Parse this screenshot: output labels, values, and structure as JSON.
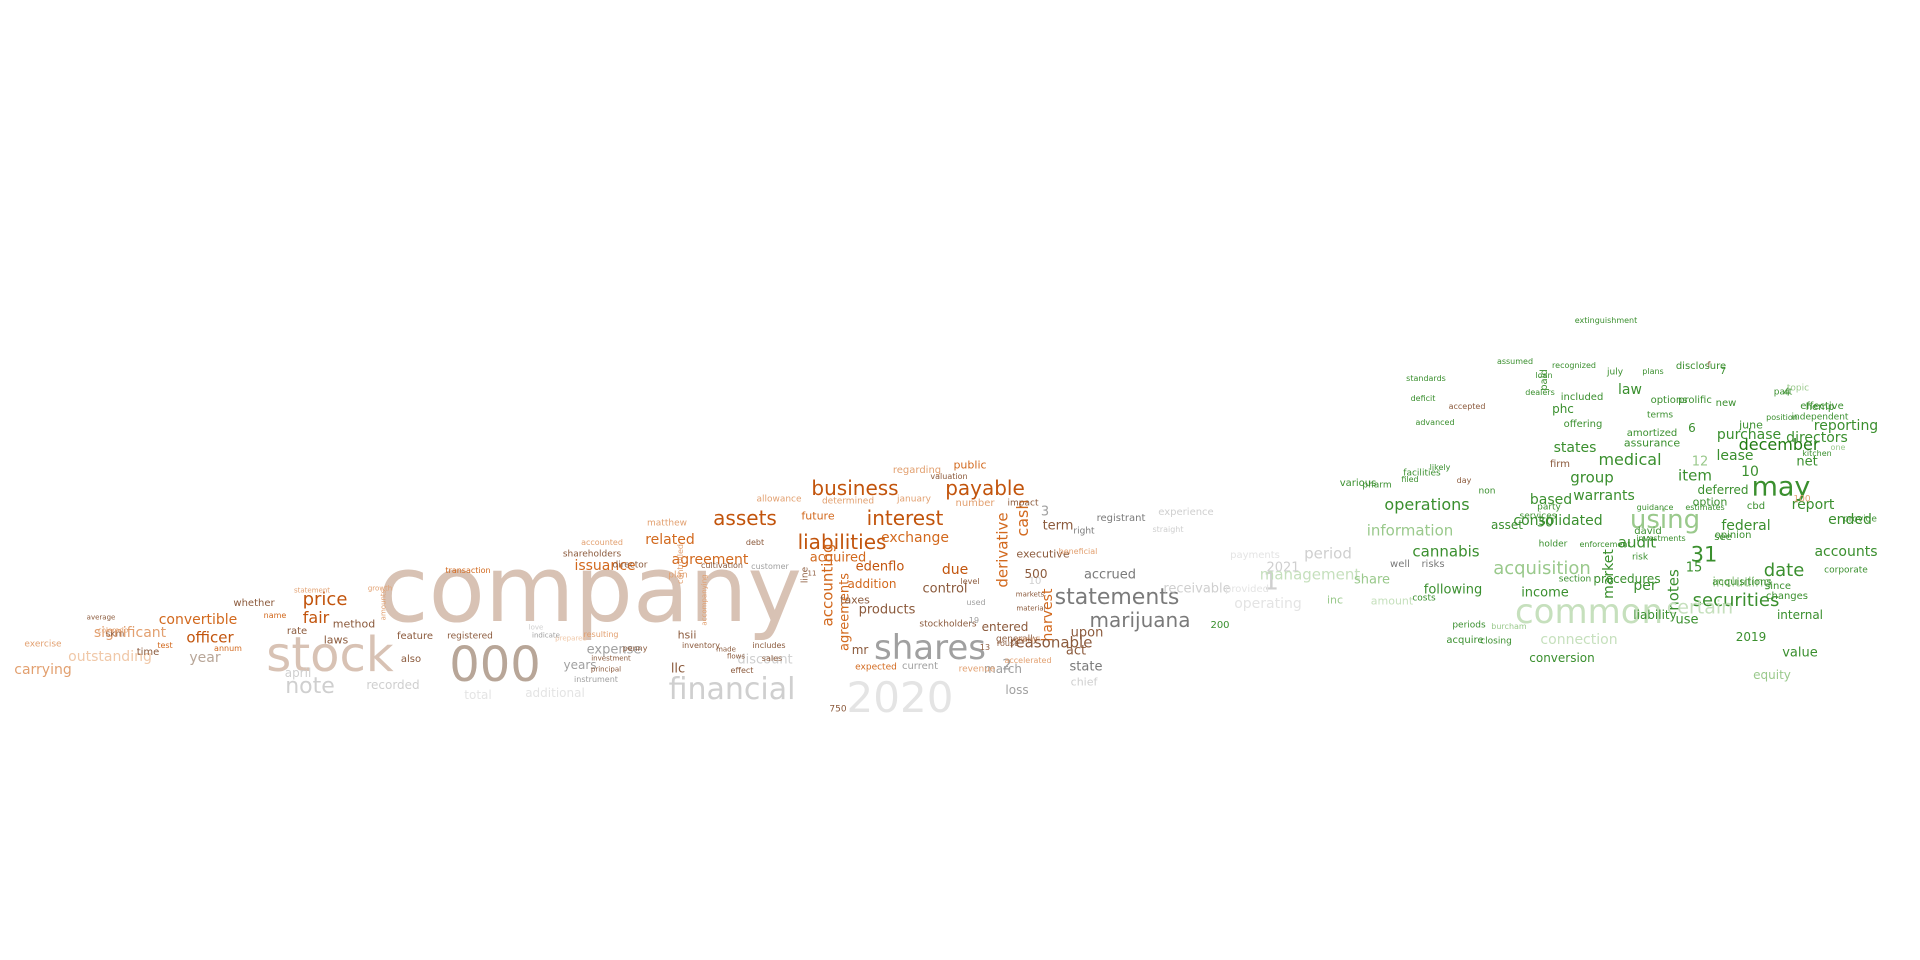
{
  "colors": {
    "dark_orange": "#c2540c",
    "orange": "#d2691e",
    "light_orange": "#e2a070",
    "pale_orange": "#f0c8a8",
    "taupe_light": "#d8c2b4",
    "taupe": "#b8a698",
    "gray": "#a0a0a0",
    "light_gray": "#cfcfcf",
    "pale_gray": "#e4e4e4",
    "dark_green": "#1f7a10",
    "green": "#3a8f2e",
    "light_green": "#9ac98c",
    "pale_green": "#c6e0bd",
    "brown": "#8b5a3c",
    "dark_gray": "#7a7a7a"
  },
  "words": [
    {
      "t": "company",
      "c": "taupe_light"
    },
    {
      "t": "stock",
      "c": "taupe_light"
    },
    {
      "t": "000",
      "c": "taupe"
    },
    {
      "t": "shares",
      "c": "gray"
    },
    {
      "t": "financial",
      "c": "light_gray"
    },
    {
      "t": "2020",
      "c": "pale_gray"
    },
    {
      "t": "note",
      "c": "light_gray"
    },
    {
      "t": "statements",
      "c": "dark_gray"
    },
    {
      "t": "marijuana",
      "c": "dark_gray"
    },
    {
      "t": "liabilities",
      "c": "dark_orange"
    },
    {
      "t": "business",
      "c": "dark_orange"
    },
    {
      "t": "interest",
      "c": "dark_orange"
    },
    {
      "t": "payable",
      "c": "dark_orange"
    },
    {
      "t": "assets",
      "c": "dark_orange"
    },
    {
      "t": "price",
      "c": "dark_orange"
    },
    {
      "t": "fair",
      "c": "dark_orange"
    },
    {
      "t": "officer",
      "c": "dark_orange"
    },
    {
      "t": "convertible",
      "c": "orange"
    },
    {
      "t": "significant",
      "c": "light_orange"
    },
    {
      "t": "outstanding",
      "c": "pale_orange"
    },
    {
      "t": "year",
      "c": "taupe"
    },
    {
      "t": "exchange",
      "c": "orange"
    },
    {
      "t": "related",
      "c": "orange"
    },
    {
      "t": "issuance",
      "c": "orange"
    },
    {
      "t": "agreement",
      "c": "orange"
    },
    {
      "t": "acquired",
      "c": "orange"
    },
    {
      "t": "edenflo",
      "c": "dark_orange"
    },
    {
      "t": "due",
      "c": "dark_orange"
    },
    {
      "t": "control",
      "c": "brown"
    },
    {
      "t": "products",
      "c": "brown"
    },
    {
      "t": "addition",
      "c": "orange"
    },
    {
      "t": "cash",
      "c": "orange"
    },
    {
      "t": "derivative",
      "c": "orange"
    },
    {
      "t": "harvest",
      "c": "orange"
    },
    {
      "t": "accounting",
      "c": "orange"
    },
    {
      "t": "agreements",
      "c": "orange"
    },
    {
      "t": "term",
      "c": "brown"
    },
    {
      "t": "500",
      "c": "brown"
    },
    {
      "t": "executive",
      "c": "brown"
    },
    {
      "t": "act",
      "c": "brown"
    },
    {
      "t": "upon",
      "c": "brown"
    },
    {
      "t": "state",
      "c": "dark_gray"
    },
    {
      "t": "chief",
      "c": "light_gray"
    },
    {
      "t": "march",
      "c": "gray"
    },
    {
      "t": "loss",
      "c": "gray"
    },
    {
      "t": "entered",
      "c": "brown"
    },
    {
      "t": "expense",
      "c": "gray"
    },
    {
      "t": "years",
      "c": "gray"
    },
    {
      "t": "llc",
      "c": "brown"
    },
    {
      "t": "hsii",
      "c": "brown"
    },
    {
      "t": "discount",
      "c": "light_gray"
    },
    {
      "t": "mr",
      "c": "brown"
    },
    {
      "t": "2",
      "c": "gray"
    },
    {
      "t": "3",
      "c": "gray"
    },
    {
      "t": "future",
      "c": "orange"
    },
    {
      "t": "taxes",
      "c": "brown"
    },
    {
      "t": "method",
      "c": "brown"
    },
    {
      "t": "laws",
      "c": "brown"
    },
    {
      "t": "rate",
      "c": "brown"
    },
    {
      "t": "whether",
      "c": "brown"
    },
    {
      "t": "also",
      "c": "brown"
    },
    {
      "t": "april",
      "c": "light_gray"
    },
    {
      "t": "recorded",
      "c": "light_gray"
    },
    {
      "t": "total",
      "c": "pale_gray"
    },
    {
      "t": "additional",
      "c": "pale_gray"
    },
    {
      "t": "feature",
      "c": "brown"
    },
    {
      "t": "registered",
      "c": "brown"
    },
    {
      "t": "public",
      "c": "orange"
    },
    {
      "t": "regarding",
      "c": "light_orange"
    },
    {
      "t": "number",
      "c": "light_orange"
    },
    {
      "t": "january",
      "c": "light_orange"
    },
    {
      "t": "determined",
      "c": "light_orange"
    },
    {
      "t": "allowance",
      "c": "light_orange"
    },
    {
      "t": "impact",
      "c": "brown"
    },
    {
      "t": "matthew",
      "c": "light_orange"
    },
    {
      "t": "shareholders",
      "c": "brown"
    },
    {
      "t": "director",
      "c": "brown"
    },
    {
      "t": "transaction",
      "c": "orange"
    },
    {
      "t": "stockholders",
      "c": "brown"
    },
    {
      "t": "current",
      "c": "gray"
    },
    {
      "t": "generally",
      "c": "brown"
    },
    {
      "t": "accrued",
      "c": "dark_gray"
    },
    {
      "t": "receivable",
      "c": "light_gray"
    },
    {
      "t": "registrant",
      "c": "dark_gray"
    },
    {
      "t": "period",
      "c": "light_gray"
    },
    {
      "t": "1",
      "c": "light_gray"
    },
    {
      "t": "2021",
      "c": "light_gray"
    },
    {
      "t": "operating",
      "c": "pale_gray"
    },
    {
      "t": "payments",
      "c": "pale_gray"
    },
    {
      "t": "provided",
      "c": "pale_gray"
    },
    {
      "t": "management",
      "c": "pale_green"
    },
    {
      "t": "inc",
      "c": "light_green"
    },
    {
      "t": "share",
      "c": "light_green"
    },
    {
      "t": "well",
      "c": "dark_gray"
    },
    {
      "t": "risks",
      "c": "dark_gray"
    },
    {
      "t": "amount",
      "c": "pale_green"
    },
    {
      "t": "information",
      "c": "light_green"
    },
    {
      "t": "operations",
      "c": "green"
    },
    {
      "t": "cannabis",
      "c": "green"
    },
    {
      "t": "acquisition",
      "c": "light_green"
    },
    {
      "t": "common",
      "c": "pale_green"
    },
    {
      "t": "connection",
      "c": "pale_green"
    },
    {
      "t": "following",
      "c": "green"
    },
    {
      "t": "income",
      "c": "green"
    },
    {
      "t": "consolidated",
      "c": "green"
    },
    {
      "t": "asset",
      "c": "green"
    },
    {
      "t": "based",
      "c": "green"
    },
    {
      "t": "states",
      "c": "green"
    },
    {
      "t": "group",
      "c": "green"
    },
    {
      "t": "warrants",
      "c": "green"
    },
    {
      "t": "audit",
      "c": "green"
    },
    {
      "t": "per",
      "c": "green"
    },
    {
      "t": "market",
      "c": "green"
    },
    {
      "t": "notes",
      "c": "green"
    },
    {
      "t": "conversion",
      "c": "green"
    },
    {
      "t": "using",
      "c": "light_green"
    },
    {
      "t": "31",
      "c": "green"
    },
    {
      "t": "may",
      "c": "green"
    },
    {
      "t": "december",
      "c": "dark_green"
    },
    {
      "t": "lease",
      "c": "green"
    },
    {
      "t": "purchase",
      "c": "green"
    },
    {
      "t": "directors",
      "c": "green"
    },
    {
      "t": "reporting",
      "c": "green"
    },
    {
      "t": "net",
      "c": "green"
    },
    {
      "t": "report",
      "c": "green"
    },
    {
      "t": "federal",
      "c": "green"
    },
    {
      "t": "ended",
      "c": "green"
    },
    {
      "t": "accounts",
      "c": "green"
    },
    {
      "t": "date",
      "c": "green"
    },
    {
      "t": "securities",
      "c": "green"
    },
    {
      "t": "value",
      "c": "green"
    },
    {
      "t": "2019",
      "c": "green"
    },
    {
      "t": "equity",
      "c": "light_green"
    },
    {
      "t": "including",
      "c": "light_green"
    },
    {
      "t": "certain",
      "c": "pale_green"
    },
    {
      "t": "internal",
      "c": "green"
    },
    {
      "t": "10",
      "c": "green"
    },
    {
      "t": "12",
      "c": "light_green"
    },
    {
      "t": "medical",
      "c": "green"
    },
    {
      "t": "item",
      "c": "green"
    },
    {
      "t": "15",
      "c": "green"
    },
    {
      "t": "use",
      "c": "green"
    },
    {
      "t": "liability",
      "c": "green"
    },
    {
      "t": "law",
      "c": "green"
    },
    {
      "t": "phc",
      "c": "green"
    },
    {
      "t": "deferred",
      "c": "green"
    },
    {
      "t": "6",
      "c": "green"
    },
    {
      "t": "7",
      "c": "green"
    },
    {
      "t": "4",
      "c": "green"
    },
    {
      "t": "30",
      "c": "green"
    },
    {
      "t": "option",
      "c": "green"
    },
    {
      "t": "acquisitions",
      "c": "green"
    },
    {
      "t": "options",
      "c": "green"
    },
    {
      "t": "prolific",
      "c": "green"
    },
    {
      "t": "paid",
      "c": "green"
    },
    {
      "t": "since",
      "c": "green"
    },
    {
      "t": "cbd",
      "c": "green"
    },
    {
      "t": "june",
      "c": "green"
    },
    {
      "t": "procedures",
      "c": "green"
    },
    {
      "t": "amortized",
      "c": "green"
    },
    {
      "t": "offering",
      "c": "green"
    },
    {
      "t": "included",
      "c": "green"
    },
    {
      "t": "part",
      "c": "green"
    },
    {
      "t": "changes",
      "c": "green"
    },
    {
      "t": "hemp",
      "c": "green"
    },
    {
      "t": "provide",
      "c": "green"
    },
    {
      "t": "new",
      "c": "green"
    },
    {
      "t": "july",
      "c": "green"
    },
    {
      "t": "extinguishment",
      "c": "green"
    },
    {
      "t": "disclosure",
      "c": "green"
    },
    {
      "t": "david",
      "c": "green"
    },
    {
      "t": "see",
      "c": "green"
    },
    {
      "t": "opinion",
      "c": "green"
    },
    {
      "t": "assurance",
      "c": "green"
    },
    {
      "t": "corporate",
      "c": "green"
    },
    {
      "t": "one",
      "c": "light_green"
    },
    {
      "t": "effective",
      "c": "green"
    },
    {
      "t": "section",
      "c": "green"
    },
    {
      "t": "holder",
      "c": "green"
    },
    {
      "t": "services",
      "c": "green"
    },
    {
      "t": "party",
      "c": "green"
    },
    {
      "t": "terms",
      "c": "green"
    },
    {
      "t": "various",
      "c": "green"
    },
    {
      "t": "pharm",
      "c": "green"
    },
    {
      "t": "facilities",
      "c": "green"
    },
    {
      "t": "non",
      "c": "green"
    },
    {
      "t": "filed",
      "c": "green"
    },
    {
      "t": "likely",
      "c": "green"
    },
    {
      "t": "advanced",
      "c": "green"
    },
    {
      "t": "deficit",
      "c": "green"
    },
    {
      "t": "standards",
      "c": "green"
    },
    {
      "t": "costs",
      "c": "green"
    },
    {
      "t": "acquire",
      "c": "green"
    },
    {
      "t": "periods",
      "c": "green"
    },
    {
      "t": "burcham",
      "c": "light_green"
    },
    {
      "t": "closing",
      "c": "green"
    },
    {
      "t": "risk",
      "c": "green"
    },
    {
      "t": "enforcement",
      "c": "green"
    },
    {
      "t": "guidance",
      "c": "green"
    },
    {
      "t": "independent",
      "c": "green"
    },
    {
      "t": "topic",
      "c": "light_green"
    },
    {
      "t": "plans",
      "c": "green"
    },
    {
      "t": "recognized",
      "c": "green"
    },
    {
      "t": "loan",
      "c": "green"
    },
    {
      "t": "assumed",
      "c": "green"
    },
    {
      "t": "investments",
      "c": "green"
    },
    {
      "t": "estimates",
      "c": "green"
    },
    {
      "t": "kitchen",
      "c": "green"
    },
    {
      "t": "position",
      "c": "green"
    },
    {
      "t": "dealers",
      "c": "green"
    },
    {
      "t": "experience",
      "c": "light_gray"
    },
    {
      "t": "straight",
      "c": "light_gray"
    },
    {
      "t": "right",
      "c": "dark_gray"
    },
    {
      "t": "beneficial",
      "c": "light_orange"
    },
    {
      "t": "accounted",
      "c": "light_orange"
    },
    {
      "t": "debt",
      "c": "brown"
    },
    {
      "t": "plan",
      "c": "light_orange"
    },
    {
      "t": "cultivation",
      "c": "brown"
    },
    {
      "t": "controlled",
      "c": "light_orange"
    },
    {
      "t": "statement",
      "c": "light_orange"
    },
    {
      "t": "growth",
      "c": "light_orange"
    },
    {
      "t": "amounts",
      "c": "light_orange"
    },
    {
      "t": "skm",
      "c": "brown"
    },
    {
      "t": "exercise",
      "c": "light_orange"
    },
    {
      "t": "name",
      "c": "orange"
    },
    {
      "t": "test",
      "c": "orange"
    },
    {
      "t": "annum",
      "c": "orange"
    },
    {
      "t": "time",
      "c": "brown"
    },
    {
      "t": "average",
      "c": "brown"
    },
    {
      "t": "colorado",
      "c": "light_orange"
    },
    {
      "t": "carrying",
      "c": "light_orange"
    },
    {
      "t": "accompanying",
      "c": "light_orange"
    },
    {
      "t": "prepared",
      "c": "pale_orange"
    },
    {
      "t": "resulting",
      "c": "light_orange"
    },
    {
      "t": "penny",
      "c": "brown"
    },
    {
      "t": "investment",
      "c": "brown"
    },
    {
      "t": "principal",
      "c": "brown"
    },
    {
      "t": "instrument",
      "c": "gray"
    },
    {
      "t": "indicate",
      "c": "gray"
    },
    {
      "t": "love",
      "c": "light_gray"
    },
    {
      "t": "inventory",
      "c": "brown"
    },
    {
      "t": "made",
      "c": "brown"
    },
    {
      "t": "flows",
      "c": "brown"
    },
    {
      "t": "effect",
      "c": "brown"
    },
    {
      "t": "includes",
      "c": "brown"
    },
    {
      "t": "sales",
      "c": "brown"
    },
    {
      "t": "customer",
      "c": "gray"
    },
    {
      "t": "line",
      "c": "brown"
    },
    {
      "t": "11",
      "c": "brown"
    },
    {
      "t": "750",
      "c": "brown"
    },
    {
      "t": "expected",
      "c": "orange"
    },
    {
      "t": "revenue",
      "c": "light_orange"
    },
    {
      "t": "rouse",
      "c": "brown"
    },
    {
      "t": "accelerated",
      "c": "light_orange"
    },
    {
      "t": "10",
      "c": "light_gray"
    },
    {
      "t": "19",
      "c": "gray"
    },
    {
      "t": "used",
      "c": "gray"
    },
    {
      "t": "level",
      "c": "brown"
    },
    {
      "t": "13",
      "c": "brown"
    },
    {
      "t": "annual",
      "c": "light_orange"
    },
    {
      "t": "material",
      "c": "brown"
    },
    {
      "t": "markets",
      "c": "brown"
    },
    {
      "t": "valuation",
      "c": "brown"
    },
    {
      "t": "reasonable",
      "c": "brown"
    },
    {
      "t": "accepted",
      "c": "brown"
    },
    {
      "t": "day",
      "c": "brown"
    },
    {
      "t": "firm",
      "c": "brown"
    },
    {
      "t": "100",
      "c": "light_orange"
    },
    {
      "t": "f",
      "c": "brown"
    },
    {
      "t": "200",
      "c": "green"
    },
    {
      "t": "150",
      "c": "green"
    },
    {
      "t": "8",
      "c": "green"
    },
    {
      "t": "17",
      "c": "green"
    },
    {
      "t": "40",
      "c": "green"
    },
    {
      "t": "5",
      "c": "pale_gray"
    }
  ]
}
